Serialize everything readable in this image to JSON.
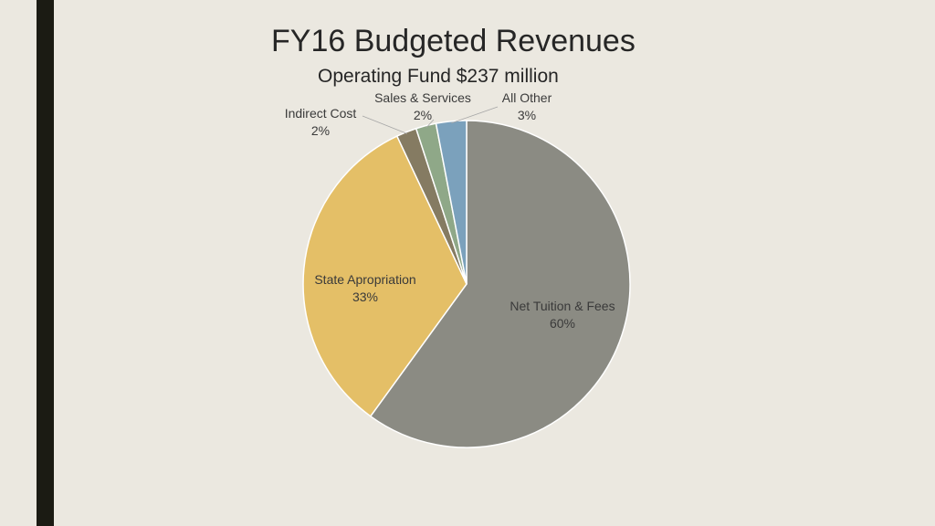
{
  "slide": {
    "title": "FY16 Budgeted Revenues",
    "subtitle": "Operating Fund $237 million"
  },
  "colors": {
    "background": "#ebe8e0",
    "accent_bar": "#1b1b13"
  },
  "chart_data": {
    "type": "pie",
    "slices": [
      {
        "label": "Net Tuition & Fees",
        "value": 60,
        "display": "60%",
        "color": "#8b8b83"
      },
      {
        "label": "State Apropriation",
        "value": 33,
        "display": "33%",
        "color": "#e4bf67"
      },
      {
        "label": "Indirect Cost",
        "value": 2,
        "display": "2%",
        "color": "#857b62"
      },
      {
        "label": "Sales & Services",
        "value": 2,
        "display": "2%",
        "color": "#8fa888"
      },
      {
        "label": "All Other",
        "value": 3,
        "display": "3%",
        "color": "#7ba1bc"
      }
    ]
  }
}
